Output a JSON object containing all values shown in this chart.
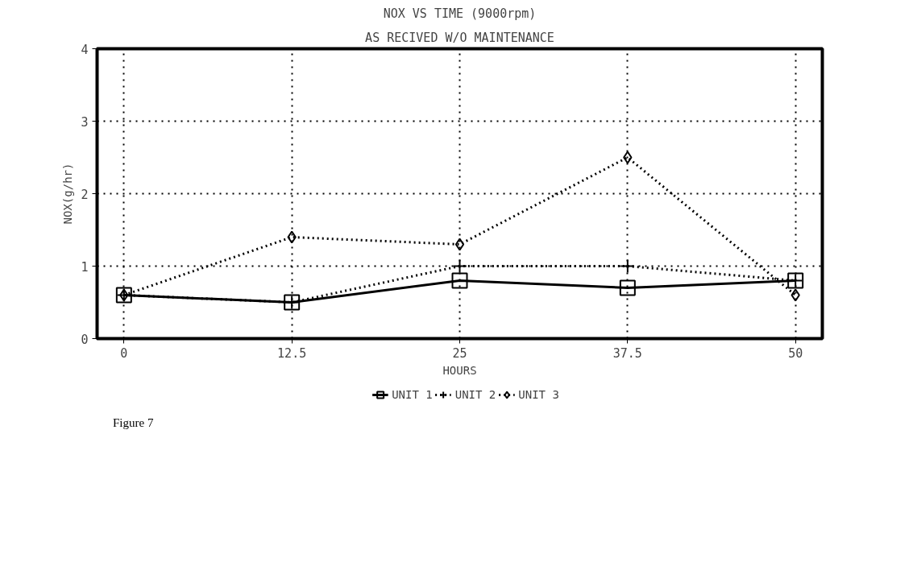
{
  "chart_data": {
    "type": "line",
    "title": "NOX VS TIME (9000rpm)",
    "subtitle": "AS RECIVED W/O MAINTENANCE",
    "xlabel": "HOURS",
    "ylabel": "NOX(g/hr)",
    "annotations": [
      "Figure 7"
    ],
    "x": [
      0,
      12.5,
      25,
      37.5,
      50
    ],
    "series": [
      {
        "name": "UNIT 1",
        "color": "#000000",
        "marker": "square",
        "line_style": "solid",
        "values": [
          0.6,
          0.5,
          0.8,
          0.7,
          0.8
        ]
      },
      {
        "name": "UNIT 2",
        "color": "#000000",
        "marker": "cross",
        "line_style": "dotted",
        "values": [
          0.6,
          0.5,
          1.0,
          1.0,
          0.8
        ]
      },
      {
        "name": "UNIT 3",
        "color": "#000000",
        "marker": "diamond",
        "line_style": "dotted",
        "values": [
          0.6,
          1.4,
          1.3,
          2.5,
          0.6
        ]
      }
    ],
    "xlim": [
      -2,
      52
    ],
    "ylim": [
      0,
      4
    ],
    "xticks": [
      0,
      12.5,
      25,
      37.5,
      50
    ],
    "yticks": [
      0,
      1,
      2,
      3,
      4
    ],
    "grid": true,
    "legend": "bottom"
  }
}
